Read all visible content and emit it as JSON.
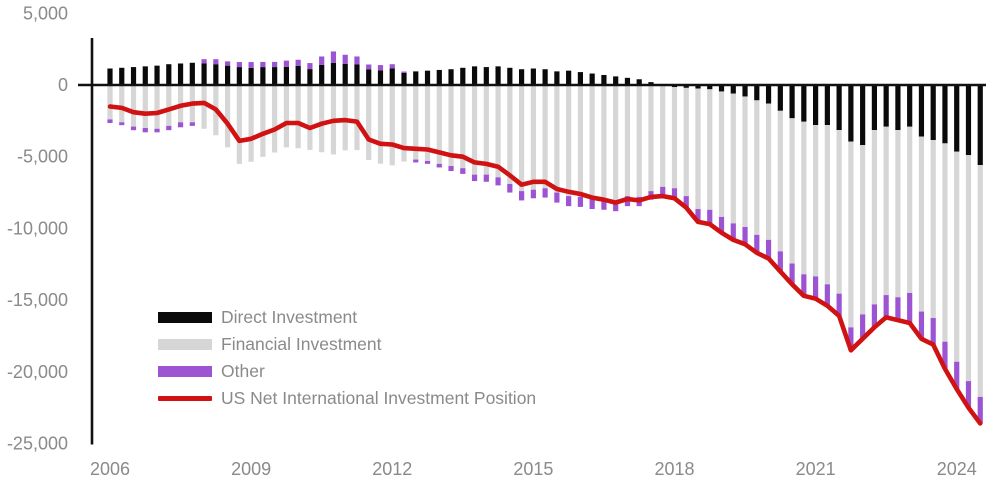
{
  "chart_data": {
    "type": "bar",
    "subtype": "stacked-bars-with-line",
    "title": "",
    "xlabel": "",
    "ylabel": "",
    "ylim": [
      -25000,
      5000
    ],
    "grid": false,
    "legend_position": "inside-lower-left",
    "y_ticks": [
      5000,
      0,
      -5000,
      -10000,
      -15000,
      -20000,
      -25000
    ],
    "y_tick_labels": [
      "5,000",
      "0",
      "-5,000",
      "-10,000",
      "-15,000",
      "-20,000",
      "-25,000"
    ],
    "x_tick_labels": [
      "2006",
      "2009",
      "2012",
      "2015",
      "2018",
      "2021",
      "2024"
    ],
    "x_tick_indices": [
      0,
      12,
      24,
      36,
      48,
      60,
      72
    ],
    "quarters": [
      "2006Q1",
      "2006Q2",
      "2006Q3",
      "2006Q4",
      "2007Q1",
      "2007Q2",
      "2007Q3",
      "2007Q4",
      "2008Q1",
      "2008Q2",
      "2008Q3",
      "2008Q4",
      "2009Q1",
      "2009Q2",
      "2009Q3",
      "2009Q4",
      "2010Q1",
      "2010Q2",
      "2010Q3",
      "2010Q4",
      "2011Q1",
      "2011Q2",
      "2011Q3",
      "2011Q4",
      "2012Q1",
      "2012Q2",
      "2012Q3",
      "2012Q4",
      "2013Q1",
      "2013Q2",
      "2013Q3",
      "2013Q4",
      "2014Q1",
      "2014Q2",
      "2014Q3",
      "2014Q4",
      "2015Q1",
      "2015Q2",
      "2015Q3",
      "2015Q4",
      "2016Q1",
      "2016Q2",
      "2016Q3",
      "2016Q4",
      "2017Q1",
      "2017Q2",
      "2017Q3",
      "2017Q4",
      "2018Q1",
      "2018Q2",
      "2018Q3",
      "2018Q4",
      "2019Q1",
      "2019Q2",
      "2019Q3",
      "2019Q4",
      "2020Q1",
      "2020Q2",
      "2020Q3",
      "2020Q4",
      "2021Q1",
      "2021Q2",
      "2021Q3",
      "2021Q4",
      "2022Q1",
      "2022Q2",
      "2022Q3",
      "2022Q4",
      "2023Q1",
      "2023Q2",
      "2023Q3",
      "2023Q4",
      "2024Q1",
      "2024Q2",
      "2024Q3"
    ],
    "series": [
      {
        "name": "Direct Investment",
        "type": "bar",
        "color": "#0a0a0a",
        "values": [
          1150,
          1200,
          1250,
          1300,
          1350,
          1450,
          1500,
          1550,
          1500,
          1450,
          1350,
          1250,
          1200,
          1250,
          1250,
          1270,
          1340,
          1110,
          1400,
          1550,
          1480,
          1430,
          1080,
          1010,
          1150,
          840,
          950,
          1000,
          1050,
          1100,
          1200,
          1300,
          1250,
          1300,
          1200,
          1100,
          1150,
          1100,
          950,
          1000,
          900,
          800,
          700,
          600,
          500,
          400,
          200,
          -60,
          -150,
          -200,
          -250,
          -300,
          -450,
          -600,
          -800,
          -1070,
          -1300,
          -1800,
          -2320,
          -2560,
          -2790,
          -2790,
          -3140,
          -3950,
          -4190,
          -3140,
          -2910,
          -3140,
          -2910,
          -3600,
          -3840,
          -4070,
          -4650,
          -4890,
          -5580
        ]
      },
      {
        "name": "Financial Investment",
        "type": "bar",
        "color": "#d6d6d6",
        "values": [
          -2400,
          -2600,
          -2900,
          -3000,
          -3050,
          -2850,
          -2600,
          -2600,
          -3050,
          -3500,
          -4350,
          -5500,
          -5350,
          -5010,
          -4710,
          -4350,
          -4410,
          -4530,
          -4690,
          -4840,
          -4560,
          -4540,
          -5230,
          -5490,
          -5600,
          -5340,
          -5200,
          -5300,
          -5500,
          -5650,
          -5800,
          -6250,
          -6250,
          -6440,
          -6900,
          -7400,
          -7300,
          -7200,
          -7500,
          -7750,
          -7800,
          -7900,
          -7900,
          -8050,
          -7750,
          -7800,
          -7400,
          -7040,
          -7050,
          -7550,
          -8400,
          -8400,
          -8750,
          -9050,
          -9100,
          -9380,
          -9500,
          -9800,
          -10130,
          -10640,
          -10560,
          -11110,
          -11410,
          -12950,
          -11810,
          -12160,
          -11740,
          -11660,
          -11590,
          -12200,
          -12410,
          -13830,
          -14650,
          -15760,
          -16170
        ]
      },
      {
        "name": "Other",
        "type": "bar",
        "color": "#9c54d3",
        "values": [
          -250,
          -200,
          -250,
          -300,
          -250,
          -300,
          -350,
          -250,
          300,
          350,
          300,
          350,
          400,
          360,
          360,
          430,
          420,
          420,
          590,
          790,
          630,
          560,
          350,
          380,
          300,
          100,
          -200,
          -200,
          -250,
          -350,
          -400,
          -450,
          -500,
          -560,
          -600,
          -650,
          -600,
          -650,
          -700,
          -700,
          -700,
          -750,
          -800,
          -750,
          -700,
          -650,
          -600,
          -650,
          -700,
          -800,
          -900,
          -1000,
          -1100,
          -1150,
          -1200,
          -1250,
          -1300,
          -1400,
          -1450,
          -1500,
          -1550,
          -1500,
          -1550,
          -1600,
          -1700,
          -1600,
          -1550,
          -1600,
          -2100,
          -1900,
          -1850,
          -1900,
          -1900,
          -1850,
          -1850
        ]
      },
      {
        "name": "US Net International Investment Position",
        "type": "line",
        "color": "#d01212",
        "values": [
          -1500,
          -1600,
          -1900,
          -2000,
          -1950,
          -1700,
          -1450,
          -1300,
          -1250,
          -1700,
          -2700,
          -3900,
          -3750,
          -3400,
          -3100,
          -2650,
          -2650,
          -3000,
          -2700,
          -2500,
          -2450,
          -2550,
          -3800,
          -4100,
          -4150,
          -4400,
          -4450,
          -4500,
          -4700,
          -4900,
          -5000,
          -5400,
          -5500,
          -5700,
          -6300,
          -6950,
          -6750,
          -6750,
          -7250,
          -7450,
          -7600,
          -7850,
          -8000,
          -8200,
          -7950,
          -8050,
          -7800,
          -7750,
          -7900,
          -8550,
          -9550,
          -9700,
          -10300,
          -10800,
          -11100,
          -11700,
          -12100,
          -13000,
          -13900,
          -14700,
          -14900,
          -15400,
          -16100,
          -18500,
          -17700,
          -16900,
          -16200,
          -16400,
          -16600,
          -17700,
          -18100,
          -19800,
          -21200,
          -22500,
          -23600
        ]
      }
    ]
  },
  "style": {
    "axis_color": "#111111",
    "tick_label_color": "#8a8a8a",
    "background": "#ffffff"
  }
}
